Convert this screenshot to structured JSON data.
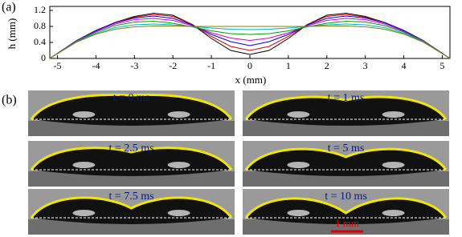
{
  "panel_labels": {
    "a": "(a)",
    "b": "(b)"
  },
  "chart_data": {
    "type": "line",
    "xlabel": "x (mm)",
    "ylabel": "h (mm)",
    "x": [
      -5.2,
      -4.5,
      -4,
      -3.5,
      -3,
      -2.5,
      -2,
      -1.5,
      -1,
      -0.5,
      0,
      0.5,
      1,
      1.5,
      2,
      2.5,
      3,
      3.5,
      4,
      4.5,
      5.2
    ],
    "series": [
      {
        "color": "#000000",
        "values": [
          0,
          0.45,
          0.7,
          0.9,
          1.05,
          1.13,
          1.08,
          0.85,
          0.5,
          0.2,
          0.1,
          0.2,
          0.5,
          0.85,
          1.08,
          1.13,
          1.05,
          0.9,
          0.7,
          0.45,
          0
        ]
      },
      {
        "color": "#e00000",
        "values": [
          0,
          0.45,
          0.7,
          0.9,
          1.03,
          1.1,
          1.05,
          0.85,
          0.55,
          0.3,
          0.2,
          0.3,
          0.55,
          0.85,
          1.05,
          1.1,
          1.03,
          0.9,
          0.7,
          0.45,
          0
        ]
      },
      {
        "color": "#0000e0",
        "values": [
          0,
          0.45,
          0.7,
          0.89,
          1.01,
          1.06,
          1.0,
          0.84,
          0.6,
          0.42,
          0.32,
          0.42,
          0.6,
          0.84,
          1.0,
          1.06,
          1.01,
          0.89,
          0.7,
          0.45,
          0
        ]
      },
      {
        "color": "#d000d0",
        "values": [
          0,
          0.44,
          0.68,
          0.86,
          0.97,
          1.0,
          0.95,
          0.82,
          0.64,
          0.51,
          0.45,
          0.51,
          0.64,
          0.82,
          0.95,
          1.0,
          0.97,
          0.86,
          0.68,
          0.44,
          0
        ]
      },
      {
        "color": "#00a000",
        "values": [
          0,
          0.43,
          0.66,
          0.82,
          0.91,
          0.93,
          0.88,
          0.79,
          0.69,
          0.62,
          0.6,
          0.62,
          0.69,
          0.79,
          0.88,
          0.93,
          0.91,
          0.82,
          0.66,
          0.43,
          0
        ]
      },
      {
        "color": "#00b0c0",
        "values": [
          0,
          0.42,
          0.63,
          0.77,
          0.84,
          0.86,
          0.84,
          0.8,
          0.76,
          0.73,
          0.72,
          0.73,
          0.76,
          0.8,
          0.84,
          0.86,
          0.84,
          0.77,
          0.63,
          0.42,
          0
        ]
      },
      {
        "color": "#808000",
        "values": [
          0,
          0.41,
          0.61,
          0.73,
          0.79,
          0.81,
          0.81,
          0.8,
          0.8,
          0.8,
          0.8,
          0.8,
          0.8,
          0.8,
          0.81,
          0.81,
          0.79,
          0.73,
          0.61,
          0.41,
          0
        ]
      }
    ],
    "xlim": [
      -5.2,
      5.2
    ],
    "ylim": [
      0,
      1.3
    ],
    "xticks": [
      -5,
      -4,
      -3,
      -2,
      -1,
      0,
      1,
      2,
      3,
      4,
      5
    ],
    "yticks": [
      0,
      0.4,
      0.8,
      1.2
    ]
  },
  "frames": [
    "t = 0 ms",
    "t = 1 ms",
    "t = 2.5 ms",
    "t = 5 ms",
    "t = 7.5 ms",
    "t = 10 ms"
  ],
  "scale_bar": "1 mm"
}
